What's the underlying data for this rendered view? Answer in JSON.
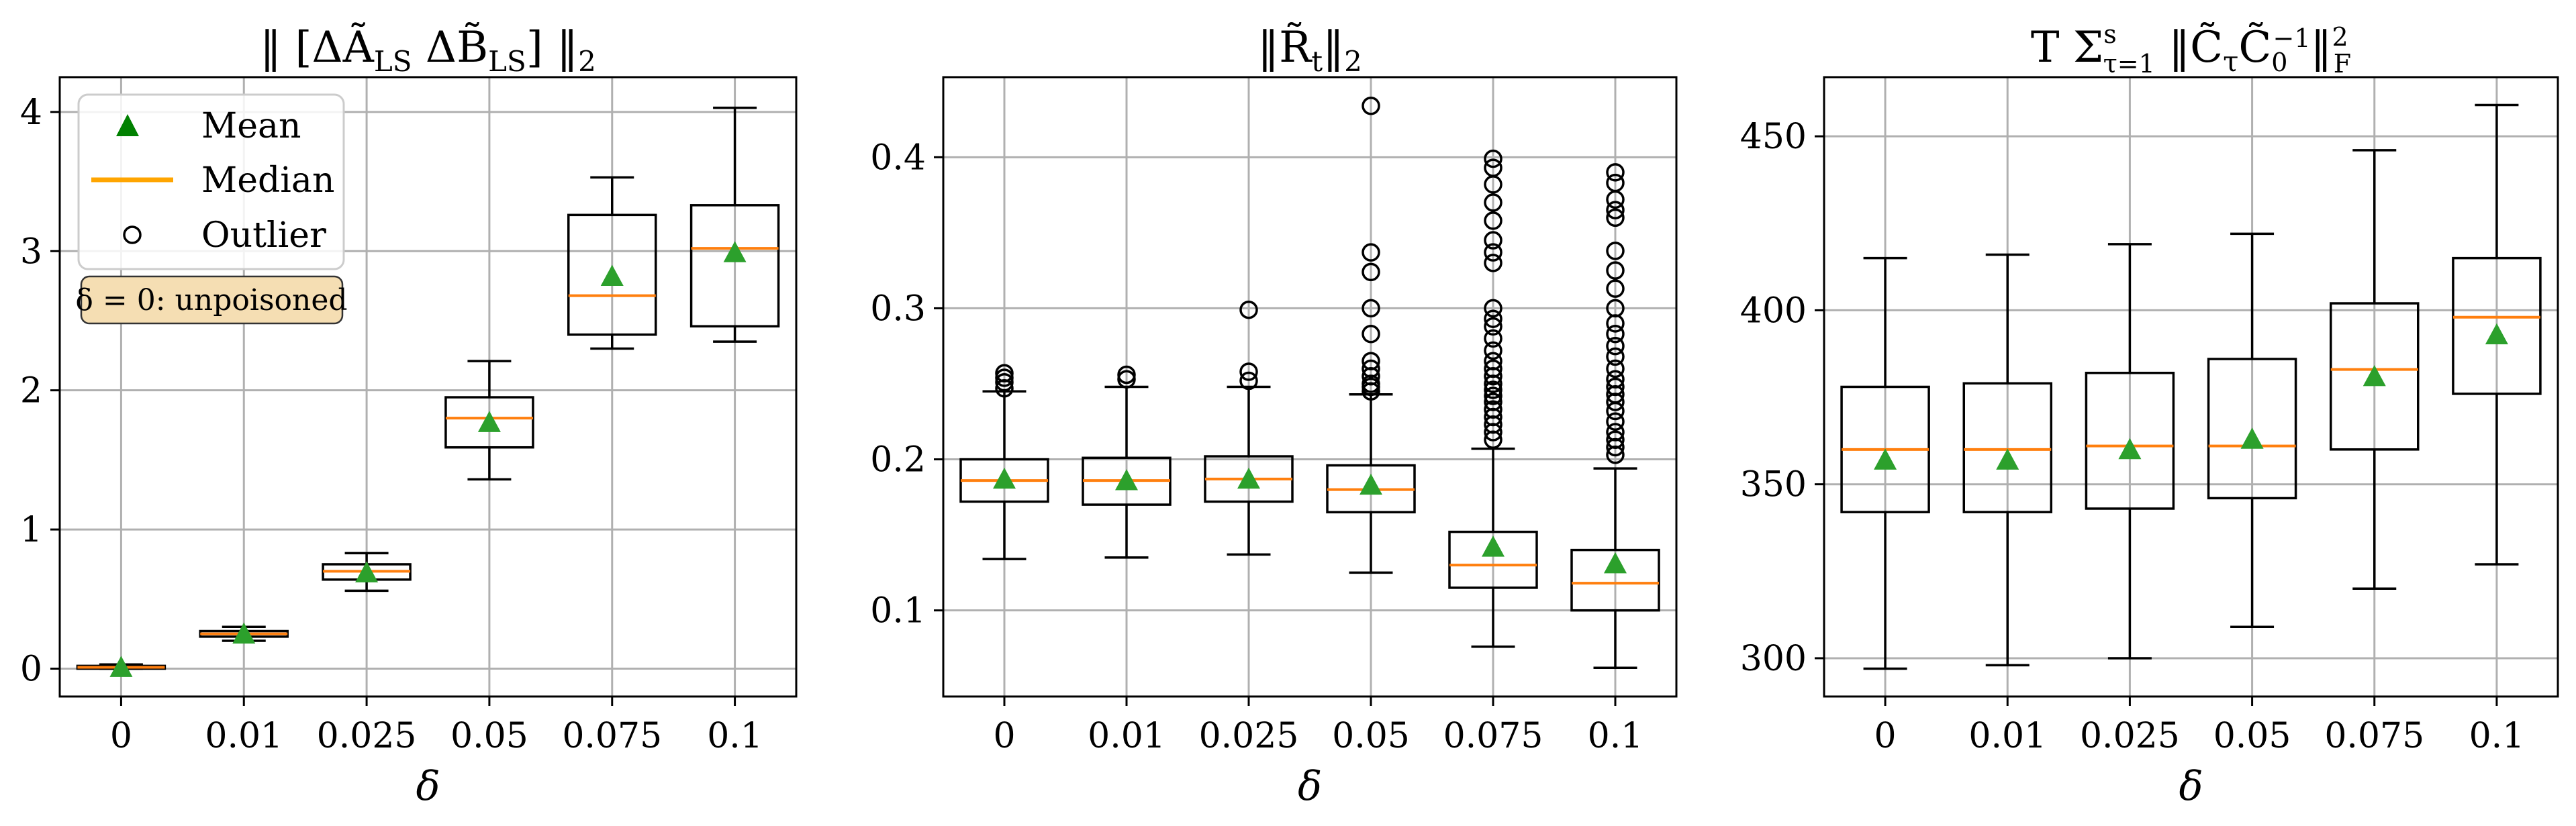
{
  "figure": {
    "note": "δ = 0: unpoisoned"
  },
  "legend": {
    "mean": "Mean",
    "median": "Median",
    "outlier": "Outlier"
  },
  "colors": {
    "box": "#000000",
    "median": "#ff7f0e",
    "legend_median": "#ffa500",
    "mean": "#2ca02c",
    "mean_legend": "#008000",
    "grid": "#b0b0b0",
    "note_bg": "#f5deb3"
  },
  "chart_data": [
    {
      "type": "box",
      "title": "‖ [ΔÃ_LS  ΔB̃_LS] ‖₂",
      "xlabel": "δ",
      "ylabel": "",
      "categories": [
        "0",
        "0.01",
        "0.025",
        "0.05",
        "0.075",
        "0.1"
      ],
      "ylim": [
        -0.2,
        4.25
      ],
      "yticks": [
        0,
        1,
        2,
        3,
        4
      ],
      "grid": true,
      "legend_position": "top-left",
      "boxes": [
        {
          "whisker_low": 0.0,
          "q1": 0.0,
          "median": 0.01,
          "q3": 0.02,
          "whisker_high": 0.03,
          "mean": 0.01,
          "outliers": []
        },
        {
          "whisker_low": 0.2,
          "q1": 0.23,
          "median": 0.25,
          "q3": 0.27,
          "whisker_high": 0.3,
          "mean": 0.25,
          "outliers": []
        },
        {
          "whisker_low": 0.56,
          "q1": 0.64,
          "median": 0.7,
          "q3": 0.75,
          "whisker_high": 0.83,
          "mean": 0.69,
          "outliers": []
        },
        {
          "whisker_low": 1.36,
          "q1": 1.59,
          "median": 1.8,
          "q3": 1.95,
          "whisker_high": 2.21,
          "mean": 1.77,
          "outliers": []
        },
        {
          "whisker_low": 2.3,
          "q1": 2.4,
          "median": 2.68,
          "q3": 3.26,
          "whisker_high": 3.53,
          "mean": 2.82,
          "outliers": []
        },
        {
          "whisker_low": 2.35,
          "q1": 2.46,
          "median": 3.02,
          "q3": 3.33,
          "whisker_high": 4.03,
          "mean": 2.99,
          "outliers": []
        }
      ]
    },
    {
      "type": "box",
      "title": "‖R̃_t‖₂",
      "xlabel": "δ",
      "ylabel": "",
      "categories": [
        "0",
        "0.01",
        "0.025",
        "0.05",
        "0.075",
        "0.1"
      ],
      "ylim": [
        0.043,
        0.453
      ],
      "yticks": [
        0.1,
        0.2,
        0.3,
        0.4
      ],
      "grid": true,
      "boxes": [
        {
          "whisker_low": 0.134,
          "q1": 0.172,
          "median": 0.186,
          "q3": 0.2,
          "whisker_high": 0.245,
          "mean": 0.187,
          "outliers": [
            0.247,
            0.251,
            0.254,
            0.257
          ]
        },
        {
          "whisker_low": 0.135,
          "q1": 0.17,
          "median": 0.186,
          "q3": 0.201,
          "whisker_high": 0.248,
          "mean": 0.186,
          "outliers": [
            0.253,
            0.256
          ]
        },
        {
          "whisker_low": 0.137,
          "q1": 0.172,
          "median": 0.187,
          "q3": 0.202,
          "whisker_high": 0.248,
          "mean": 0.187,
          "outliers": [
            0.252,
            0.258,
            0.299
          ]
        },
        {
          "whisker_low": 0.125,
          "q1": 0.165,
          "median": 0.18,
          "q3": 0.196,
          "whisker_high": 0.243,
          "mean": 0.183,
          "outliers": [
            0.245,
            0.248,
            0.25,
            0.255,
            0.26,
            0.265,
            0.283,
            0.3,
            0.324,
            0.337,
            0.434
          ]
        },
        {
          "whisker_low": 0.076,
          "q1": 0.115,
          "median": 0.13,
          "q3": 0.152,
          "whisker_high": 0.207,
          "mean": 0.142,
          "outliers": [
            0.213,
            0.218,
            0.223,
            0.228,
            0.233,
            0.238,
            0.242,
            0.246,
            0.25,
            0.255,
            0.26,
            0.265,
            0.272,
            0.28,
            0.288,
            0.293,
            0.3,
            0.33,
            0.337,
            0.345,
            0.358,
            0.37,
            0.382,
            0.393,
            0.399
          ]
        },
        {
          "whisker_low": 0.062,
          "q1": 0.1,
          "median": 0.118,
          "q3": 0.14,
          "whisker_high": 0.194,
          "mean": 0.131,
          "outliers": [
            0.203,
            0.208,
            0.213,
            0.218,
            0.225,
            0.232,
            0.238,
            0.243,
            0.248,
            0.253,
            0.26,
            0.268,
            0.275,
            0.283,
            0.29,
            0.3,
            0.313,
            0.325,
            0.338,
            0.36,
            0.365,
            0.372,
            0.383,
            0.39
          ]
        }
      ]
    },
    {
      "type": "box",
      "title": "T Σ_{τ=1}^{s} ‖C̃_τ C̃_0^{-1}‖²_F",
      "xlabel": "δ",
      "ylabel": "",
      "categories": [
        "0",
        "0.01",
        "0.025",
        "0.05",
        "0.075",
        "0.1"
      ],
      "ylim": [
        289,
        467
      ],
      "yticks": [
        300,
        350,
        400,
        450
      ],
      "grid": true,
      "boxes": [
        {
          "whisker_low": 297,
          "q1": 342,
          "median": 360,
          "q3": 378,
          "whisker_high": 415,
          "mean": 357,
          "outliers": []
        },
        {
          "whisker_low": 298,
          "q1": 342,
          "median": 360,
          "q3": 379,
          "whisker_high": 416,
          "mean": 357,
          "outliers": []
        },
        {
          "whisker_low": 300,
          "q1": 343,
          "median": 361,
          "q3": 382,
          "whisker_high": 419,
          "mean": 360,
          "outliers": []
        },
        {
          "whisker_low": 309,
          "q1": 346,
          "median": 361,
          "q3": 386,
          "whisker_high": 422,
          "mean": 363,
          "outliers": []
        },
        {
          "whisker_low": 320,
          "q1": 360,
          "median": 383,
          "q3": 402,
          "whisker_high": 446,
          "mean": 381,
          "outliers": []
        },
        {
          "whisker_low": 327,
          "q1": 376,
          "median": 398,
          "q3": 415,
          "whisker_high": 459,
          "mean": 393,
          "outliers": []
        }
      ]
    }
  ]
}
